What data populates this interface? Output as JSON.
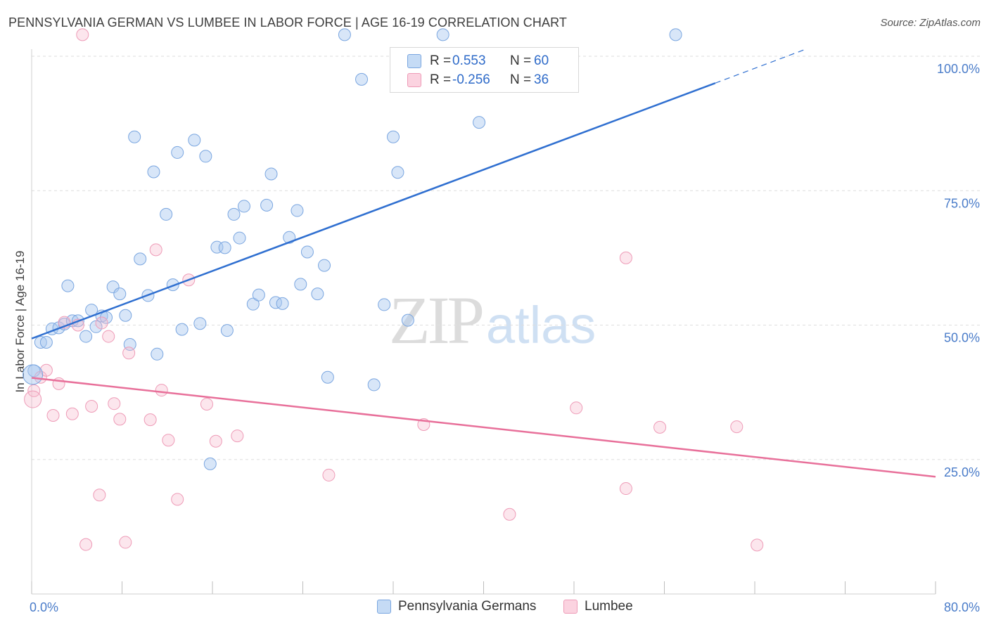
{
  "header": {
    "title": "PENNSYLVANIA GERMAN VS LUMBEE IN LABOR FORCE | AGE 16-19 CORRELATION CHART",
    "source": "Source: ZipAtlas.com"
  },
  "watermark": {
    "zip": "ZIP",
    "atlas": "atlas"
  },
  "legend": {
    "rows": [
      {
        "r_label": "R =",
        "r_value": "0.553",
        "n_label": "N =",
        "n_value": "60",
        "color": "#a9c8ef"
      },
      {
        "r_label": "R =",
        "r_value": "-0.256",
        "n_label": "N =",
        "n_value": "36",
        "color": "#f5b8cb"
      }
    ]
  },
  "bottom_legend": [
    {
      "label": "Pennsylvania Germans",
      "color": "#a9c8ef"
    },
    {
      "label": "Lumbee",
      "color": "#f5b8cb"
    }
  ],
  "chart_data": {
    "type": "scatter",
    "ylabel": "In Labor Force | Age 16-19",
    "xlabel": "",
    "x_ticks": [
      "0.0%",
      "80.0%"
    ],
    "y_ticks": [
      "100.0%",
      "75.0%",
      "50.0%",
      "25.0%"
    ],
    "xlim": [
      0,
      80
    ],
    "ylim": [
      0,
      106
    ],
    "grid": "horizontal dashed",
    "colors": {
      "blue": "#a9c8ef",
      "blue_line": "#2f6fd0",
      "pink": "#f5b8cb",
      "pink_line": "#e8709a"
    },
    "series": [
      {
        "name": "Pennsylvania Germans",
        "trend": {
          "x": [
            0,
            60.5
          ],
          "y": [
            47.5,
            95.0
          ],
          "dashed_to": [
            68.5,
            101.3
          ]
        },
        "points": [
          [
            0.2,
            41.5
          ],
          [
            0.8,
            46.8
          ],
          [
            1.3,
            46.8
          ],
          [
            1.8,
            49.3
          ],
          [
            2.4,
            49.5
          ],
          [
            2.9,
            50.2
          ],
          [
            3.2,
            57.3
          ],
          [
            3.6,
            50.8
          ],
          [
            4.1,
            50.8
          ],
          [
            4.8,
            47.9
          ],
          [
            5.3,
            52.8
          ],
          [
            5.7,
            49.7
          ],
          [
            6.2,
            51.7
          ],
          [
            6.6,
            51.4
          ],
          [
            7.2,
            57.1
          ],
          [
            7.8,
            55.8
          ],
          [
            8.3,
            51.8
          ],
          [
            8.7,
            46.4
          ],
          [
            9.1,
            85.0
          ],
          [
            9.6,
            62.3
          ],
          [
            10.3,
            55.5
          ],
          [
            10.8,
            78.5
          ],
          [
            11.1,
            44.6
          ],
          [
            11.9,
            70.6
          ],
          [
            12.5,
            57.5
          ],
          [
            12.9,
            82.1
          ],
          [
            13.3,
            49.2
          ],
          [
            14.4,
            84.4
          ],
          [
            14.9,
            50.3
          ],
          [
            15.4,
            81.4
          ],
          [
            15.8,
            24.2
          ],
          [
            16.4,
            64.5
          ],
          [
            17.1,
            64.4
          ],
          [
            17.3,
            49.0
          ],
          [
            17.9,
            70.6
          ],
          [
            18.4,
            66.2
          ],
          [
            18.8,
            72.1
          ],
          [
            19.6,
            53.9
          ],
          [
            20.1,
            55.6
          ],
          [
            20.8,
            72.3
          ],
          [
            21.2,
            78.1
          ],
          [
            21.6,
            54.2
          ],
          [
            22.2,
            54.0
          ],
          [
            22.8,
            66.3
          ],
          [
            23.5,
            71.3
          ],
          [
            23.8,
            57.6
          ],
          [
            24.4,
            63.6
          ],
          [
            25.3,
            55.8
          ],
          [
            25.9,
            61.1
          ],
          [
            26.2,
            40.3
          ],
          [
            27.7,
            104.0
          ],
          [
            29.2,
            95.7
          ],
          [
            30.3,
            38.9
          ],
          [
            31.2,
            53.8
          ],
          [
            32.0,
            85.0
          ],
          [
            32.4,
            78.4
          ],
          [
            33.3,
            50.9
          ],
          [
            36.4,
            104.0
          ],
          [
            39.6,
            87.7
          ],
          [
            57.0,
            104.0
          ]
        ]
      },
      {
        "name": "Lumbee",
        "trend": {
          "x": [
            0,
            80
          ],
          "y": [
            40.2,
            21.8
          ]
        },
        "points": [
          [
            0.2,
            37.8
          ],
          [
            0.8,
            40.3
          ],
          [
            1.3,
            41.6
          ],
          [
            1.9,
            33.2
          ],
          [
            2.4,
            39.1
          ],
          [
            2.9,
            50.5
          ],
          [
            3.6,
            33.5
          ],
          [
            4.1,
            50.0
          ],
          [
            4.5,
            104.0
          ],
          [
            4.8,
            9.2
          ],
          [
            5.3,
            34.9
          ],
          [
            6.0,
            18.4
          ],
          [
            6.2,
            50.4
          ],
          [
            6.8,
            47.9
          ],
          [
            7.3,
            35.4
          ],
          [
            7.8,
            32.5
          ],
          [
            8.3,
            9.6
          ],
          [
            8.6,
            44.8
          ],
          [
            10.5,
            32.4
          ],
          [
            11.0,
            64.0
          ],
          [
            11.5,
            37.9
          ],
          [
            12.1,
            28.6
          ],
          [
            12.9,
            17.6
          ],
          [
            13.9,
            58.4
          ],
          [
            15.5,
            35.3
          ],
          [
            16.3,
            28.4
          ],
          [
            18.2,
            29.4
          ],
          [
            26.3,
            22.1
          ],
          [
            34.7,
            31.5
          ],
          [
            42.3,
            14.8
          ],
          [
            48.2,
            34.6
          ],
          [
            52.6,
            62.5
          ],
          [
            52.6,
            19.6
          ],
          [
            55.6,
            31.0
          ],
          [
            62.4,
            31.1
          ],
          [
            64.2,
            9.1
          ]
        ]
      }
    ]
  }
}
